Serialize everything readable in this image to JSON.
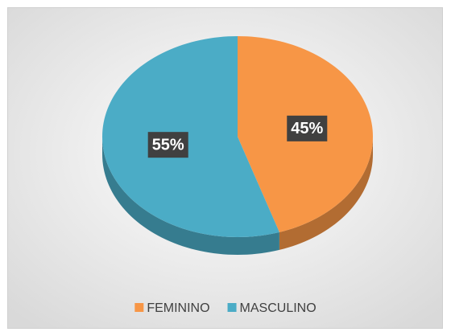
{
  "chart_data": {
    "type": "pie",
    "categories": [
      "FEMININO",
      "MASCULINO"
    ],
    "values": [
      45,
      55
    ],
    "value_labels": [
      "45%",
      "55%"
    ],
    "colors": [
      "#F79646",
      "#4BACC6"
    ],
    "legend": "bottom"
  }
}
